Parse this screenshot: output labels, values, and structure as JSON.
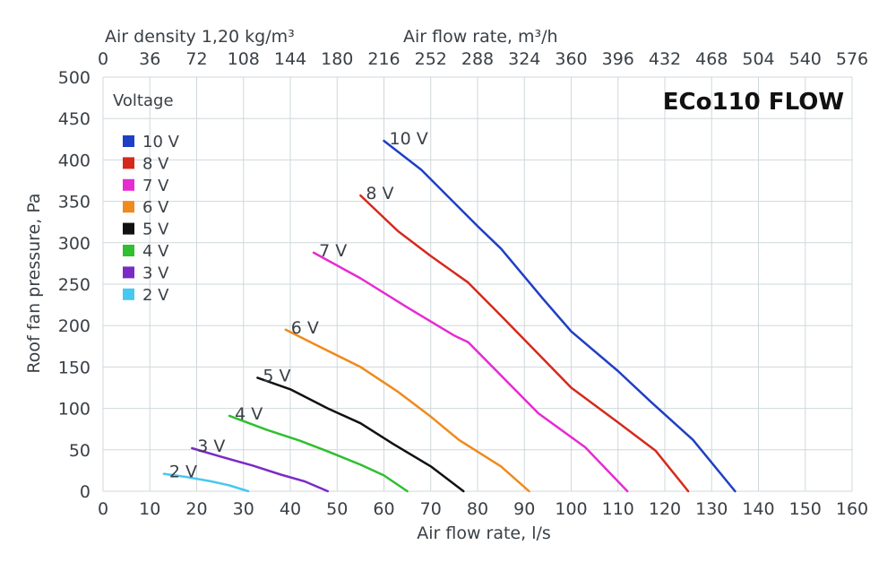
{
  "chart_data": {
    "type": "line",
    "title": "ECo110 FLOW",
    "xlabel": "Air flow rate, l/s",
    "ylabel": "Roof fan pressure, Pa",
    "top_left_label": "Air density 1,20 kg/m³",
    "top_axis_label": "Air flow rate, m³/h",
    "legend_title": "Voltage",
    "legend_position": "top-left",
    "grid": true,
    "xlim": [
      0,
      160
    ],
    "ylim": [
      0,
      500
    ],
    "x_ticks": [
      0,
      10,
      20,
      30,
      40,
      50,
      60,
      70,
      80,
      90,
      100,
      110,
      120,
      130,
      140,
      150,
      160
    ],
    "y_ticks": [
      0,
      50,
      100,
      150,
      200,
      250,
      300,
      350,
      400,
      450,
      500
    ],
    "top_ticks": [
      "0",
      "36",
      "72",
      "108",
      "144",
      "180",
      "216",
      "252",
      "288",
      "324",
      "360",
      "396",
      "432",
      "468",
      "504",
      "540",
      "576"
    ],
    "series": [
      {
        "name": "10 V",
        "color": "#1f3fc4",
        "points": [
          [
            60,
            423
          ],
          [
            68,
            388
          ],
          [
            80,
            320
          ],
          [
            85,
            293
          ],
          [
            94,
            232
          ],
          [
            100,
            193
          ],
          [
            110,
            145
          ],
          [
            117,
            108
          ],
          [
            126,
            62
          ],
          [
            135,
            0
          ]
        ]
      },
      {
        "name": "8 V",
        "color": "#d42a1c",
        "points": [
          [
            55,
            357
          ],
          [
            63,
            314
          ],
          [
            70,
            284
          ],
          [
            78,
            252
          ],
          [
            85,
            212
          ],
          [
            100,
            125
          ],
          [
            110,
            83
          ],
          [
            118,
            49
          ],
          [
            125,
            0
          ]
        ]
      },
      {
        "name": "7 V",
        "color": "#e62bd2",
        "points": [
          [
            45,
            288
          ],
          [
            55,
            257
          ],
          [
            65,
            222
          ],
          [
            75,
            188
          ],
          [
            78,
            180
          ],
          [
            93,
            94
          ],
          [
            103,
            53
          ],
          [
            112,
            0
          ]
        ]
      },
      {
        "name": "6 V",
        "color": "#ef8a1c",
        "points": [
          [
            39,
            195
          ],
          [
            45,
            178
          ],
          [
            55,
            150
          ],
          [
            63,
            120
          ],
          [
            70,
            90
          ],
          [
            76,
            62
          ],
          [
            85,
            30
          ],
          [
            91,
            0
          ]
        ]
      },
      {
        "name": "5 V",
        "color": "#111111",
        "points": [
          [
            33,
            137
          ],
          [
            40,
            123
          ],
          [
            48,
            100
          ],
          [
            55,
            82
          ],
          [
            62,
            57
          ],
          [
            70,
            30
          ],
          [
            77,
            0
          ]
        ]
      },
      {
        "name": "4 V",
        "color": "#2fbf2f",
        "points": [
          [
            27,
            91
          ],
          [
            35,
            74
          ],
          [
            42,
            61
          ],
          [
            48,
            48
          ],
          [
            55,
            32
          ],
          [
            60,
            19
          ],
          [
            65,
            0
          ]
        ]
      },
      {
        "name": "3 V",
        "color": "#7b2bc4",
        "points": [
          [
            19,
            52
          ],
          [
            25,
            42
          ],
          [
            32,
            31
          ],
          [
            38,
            20
          ],
          [
            43,
            12
          ],
          [
            48,
            0
          ]
        ]
      },
      {
        "name": "2 V",
        "color": "#46c8ef",
        "points": [
          [
            13,
            21
          ],
          [
            18,
            17
          ],
          [
            23,
            12
          ],
          [
            27,
            7
          ],
          [
            31,
            0
          ]
        ]
      }
    ]
  }
}
